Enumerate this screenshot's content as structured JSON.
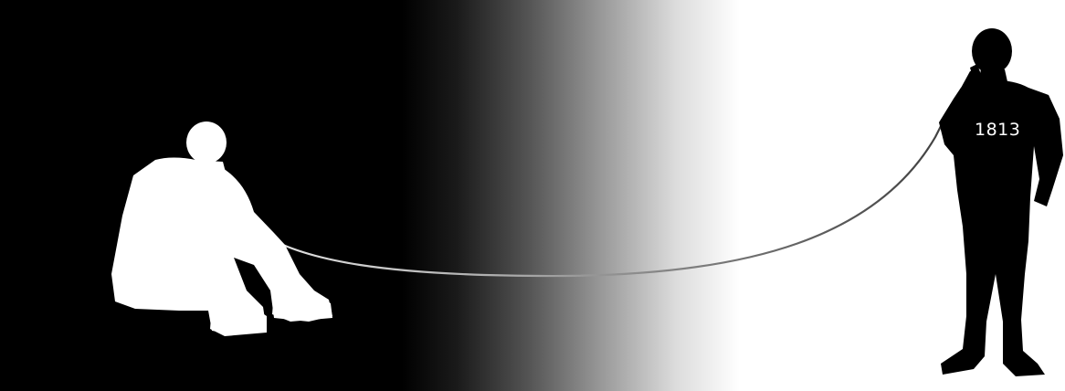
{
  "scene": {
    "background_left_color": "#000000",
    "background_right_color": "#ffffff",
    "seated_figure_color": "#ffffff",
    "standing_figure_color": "#000000",
    "cord_color": "#888888"
  },
  "standing_figure": {
    "shirt_number": "1813"
  }
}
